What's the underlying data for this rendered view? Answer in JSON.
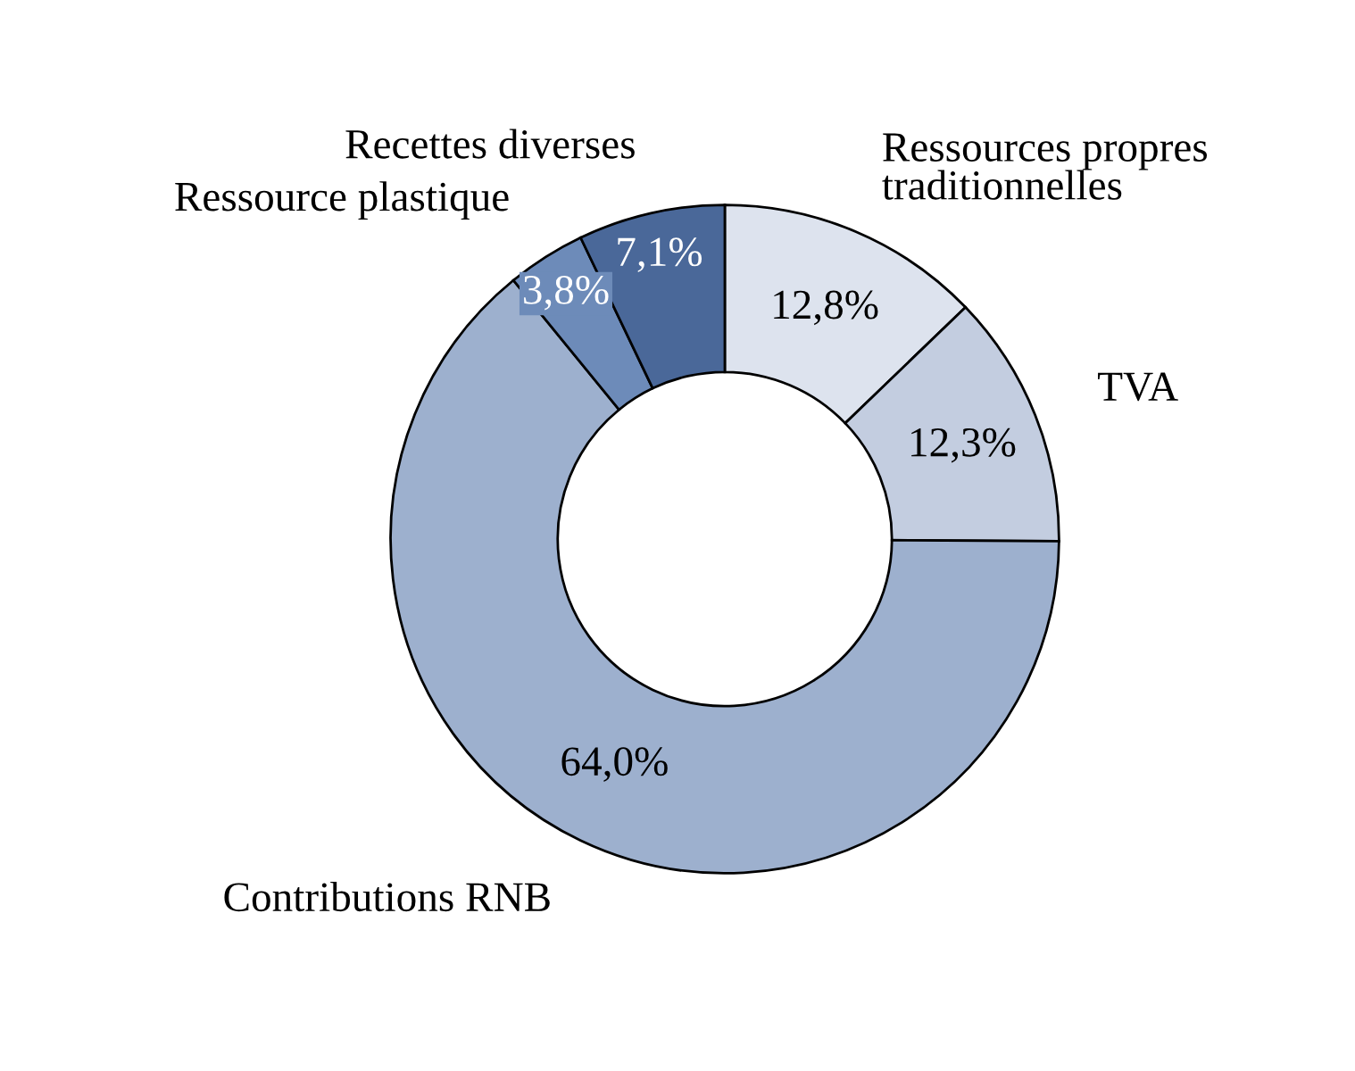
{
  "chart_data": {
    "type": "donut",
    "categories": [
      "Ressources propres traditionnelles",
      "TVA",
      "Contributions RNB",
      "Ressource plastique",
      "Recettes diverses"
    ],
    "values": [
      12.8,
      12.3,
      64.0,
      3.8,
      7.1
    ],
    "value_labels": [
      "12,8%",
      "12,3%",
      "64,0%",
      "3,8%",
      "7,1%"
    ],
    "colors": [
      "#dde3ee",
      "#c3cde0",
      "#9db0ce",
      "#6d8bb9",
      "#4a6899"
    ],
    "legend": false
  }
}
